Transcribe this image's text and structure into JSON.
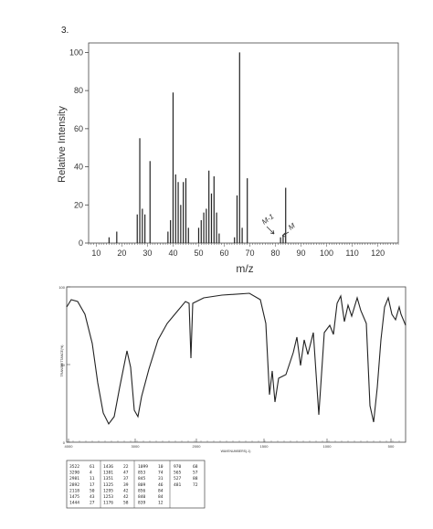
{
  "problem_number": "3.",
  "chart_data": [
    {
      "type": "bar",
      "xlabel": "m/z",
      "ylabel": "Relative Intensity",
      "xlim": [
        7,
        128
      ],
      "ylim": [
        0,
        105
      ],
      "x_ticks": [
        10,
        20,
        30,
        40,
        50,
        60,
        70,
        80,
        90,
        100,
        110,
        120
      ],
      "y_ticks": [
        0,
        20,
        40,
        60,
        80,
        100
      ],
      "annotations": [
        "M-1",
        "M"
      ],
      "peaks": [
        {
          "x": 15,
          "y": 3
        },
        {
          "x": 18,
          "y": 6
        },
        {
          "x": 26,
          "y": 15
        },
        {
          "x": 27,
          "y": 55
        },
        {
          "x": 28,
          "y": 18
        },
        {
          "x": 29,
          "y": 15
        },
        {
          "x": 31,
          "y": 43
        },
        {
          "x": 38,
          "y": 6
        },
        {
          "x": 39,
          "y": 12
        },
        {
          "x": 40,
          "y": 79
        },
        {
          "x": 41,
          "y": 36
        },
        {
          "x": 42,
          "y": 32
        },
        {
          "x": 43,
          "y": 20
        },
        {
          "x": 44,
          "y": 32
        },
        {
          "x": 45,
          "y": 34
        },
        {
          "x": 46,
          "y": 8
        },
        {
          "x": 50,
          "y": 8
        },
        {
          "x": 51,
          "y": 12
        },
        {
          "x": 52,
          "y": 16
        },
        {
          "x": 53,
          "y": 18
        },
        {
          "x": 54,
          "y": 38
        },
        {
          "x": 55,
          "y": 26
        },
        {
          "x": 56,
          "y": 35
        },
        {
          "x": 57,
          "y": 16
        },
        {
          "x": 58,
          "y": 5
        },
        {
          "x": 64,
          "y": 3
        },
        {
          "x": 65,
          "y": 25
        },
        {
          "x": 66,
          "y": 100
        },
        {
          "x": 67,
          "y": 8
        },
        {
          "x": 69,
          "y": 34
        },
        {
          "x": 82,
          "y": 3
        },
        {
          "x": 83,
          "y": 4
        },
        {
          "x": 84,
          "y": 29
        }
      ]
    },
    {
      "type": "line",
      "xlabel": "WAVENUMBERS(-1)",
      "ylabel": "TRANSMITTANCE(%)",
      "x_ticks": [
        "4000",
        "3000",
        "2000",
        "1500",
        "1000",
        "500"
      ],
      "y_ticks": [
        "100",
        "50",
        "0"
      ],
      "peak_table": [
        [
          "3522",
          "61",
          "1436",
          "22",
          "1099",
          "10",
          "970",
          "68"
        ],
        [
          "3290",
          "4",
          "1381",
          "47",
          "853",
          "74",
          "565",
          "57"
        ],
        [
          "2981",
          "11",
          "1351",
          "37",
          "845",
          "31",
          "527",
          "88"
        ],
        [
          "2892",
          "17",
          "1325",
          "39",
          "809",
          "46",
          "481",
          "72"
        ],
        [
          "2118",
          "50",
          "1295",
          "42",
          "856",
          "84",
          "",
          ""
        ],
        [
          "1475",
          "43",
          "1253",
          "42",
          "840",
          "84",
          "",
          ""
        ],
        [
          "1444",
          "27",
          "1176",
          "58",
          "839",
          "12",
          "",
          ""
        ]
      ]
    }
  ]
}
